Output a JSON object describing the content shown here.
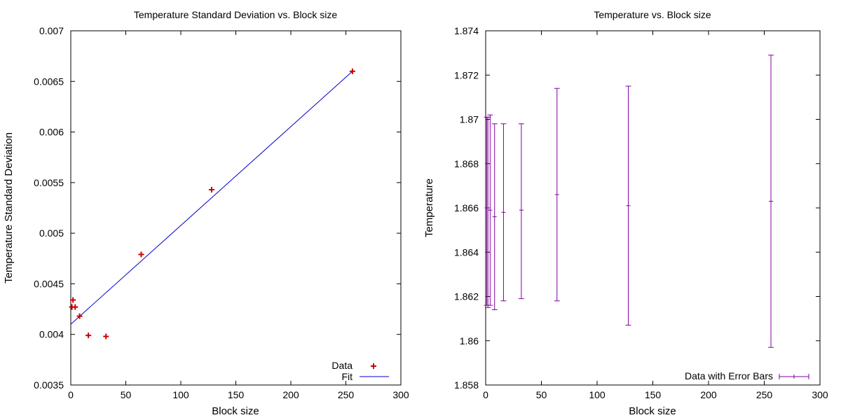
{
  "chart_data": [
    {
      "type": "scatter",
      "title": "Temperature Standard Deviation vs. Block size",
      "xlabel": "Block size",
      "ylabel": "Temperature Standard Deviation",
      "xlim": [
        0,
        300
      ],
      "ylim": [
        0.0035,
        0.007
      ],
      "xticks": [
        "0",
        "50",
        "100",
        "150",
        "200",
        "250",
        "300"
      ],
      "yticks": [
        "0.0035",
        "0.004",
        "0.0045",
        "0.005",
        "0.0055",
        "0.006",
        "0.0065",
        "0.007"
      ],
      "grid": false,
      "legend_position": "bottom-right",
      "series": [
        {
          "name": "Data",
          "style": "points",
          "color": "#cc0000",
          "x": [
            1,
            2,
            4,
            8,
            16,
            32,
            64,
            128,
            256
          ],
          "y": [
            0.00427,
            0.00434,
            0.00427,
            0.00418,
            0.00399,
            0.00398,
            0.00479,
            0.00543,
            0.0066
          ]
        },
        {
          "name": "Fit",
          "style": "line",
          "color": "#0000cc",
          "x": [
            0,
            256
          ],
          "y": [
            0.0041,
            0.0066
          ]
        }
      ]
    },
    {
      "type": "errorbar",
      "title": "Temperature vs. Block size",
      "xlabel": "Block size",
      "ylabel": "Temperature",
      "xlim": [
        0,
        300
      ],
      "ylim": [
        1.858,
        1.874
      ],
      "xticks": [
        "0",
        "50",
        "100",
        "150",
        "200",
        "250",
        "300"
      ],
      "yticks": [
        "1.858",
        "1.86",
        "1.862",
        "1.864",
        "1.866",
        "1.868",
        "1.87",
        "1.872",
        "1.874"
      ],
      "grid": false,
      "legend_position": "bottom-right",
      "series": [
        {
          "name": "Data with Error Bars",
          "color": "#8000a0",
          "x": [
            1,
            2,
            4,
            8,
            16,
            32,
            64,
            128,
            256
          ],
          "y": [
            1.866,
            1.866,
            1.8659,
            1.8656,
            1.8658,
            1.8659,
            1.8666,
            1.8661,
            1.8663
          ],
          "ylow": [
            1.8616,
            1.8615,
            1.8616,
            1.8614,
            1.8618,
            1.8619,
            1.8618,
            1.8607,
            1.8597
          ],
          "yhigh": [
            1.8701,
            1.8701,
            1.8702,
            1.8698,
            1.8698,
            1.8698,
            1.8714,
            1.8715,
            1.8729
          ]
        }
      ]
    }
  ]
}
